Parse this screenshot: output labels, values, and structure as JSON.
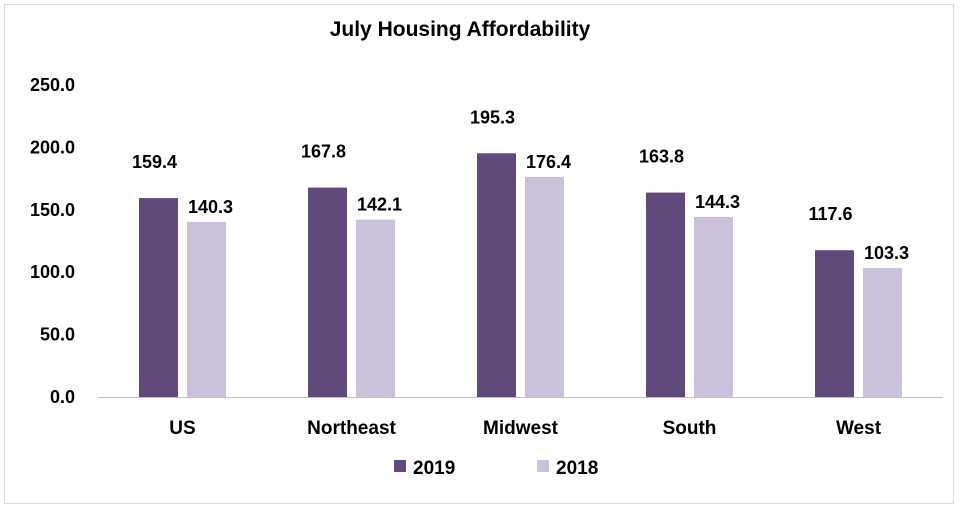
{
  "chart_data": {
    "type": "bar",
    "title": "July Housing Affordability",
    "categories": [
      "US",
      "Northeast",
      "Midwest",
      "South",
      "West"
    ],
    "series": [
      {
        "name": "2019",
        "values": [
          159.4,
          167.8,
          195.3,
          163.8,
          117.6
        ],
        "color": "#604a7b",
        "labels": [
          "159.4",
          "167.8",
          "195.3",
          "163.8",
          "117.6"
        ]
      },
      {
        "name": "2018",
        "values": [
          140.3,
          142.1,
          176.4,
          144.3,
          103.3
        ],
        "color": "#ccc1da",
        "labels": [
          "140.3",
          "142.1",
          "176.4",
          "144.3",
          "103.3"
        ]
      }
    ],
    "ylim": [
      0,
      250
    ],
    "yticks": [
      "0.0",
      "50.0",
      "100.0",
      "150.0",
      "200.0",
      "250.0"
    ],
    "grid": false,
    "legend": "bottom",
    "xlabel": "",
    "ylabel": ""
  }
}
